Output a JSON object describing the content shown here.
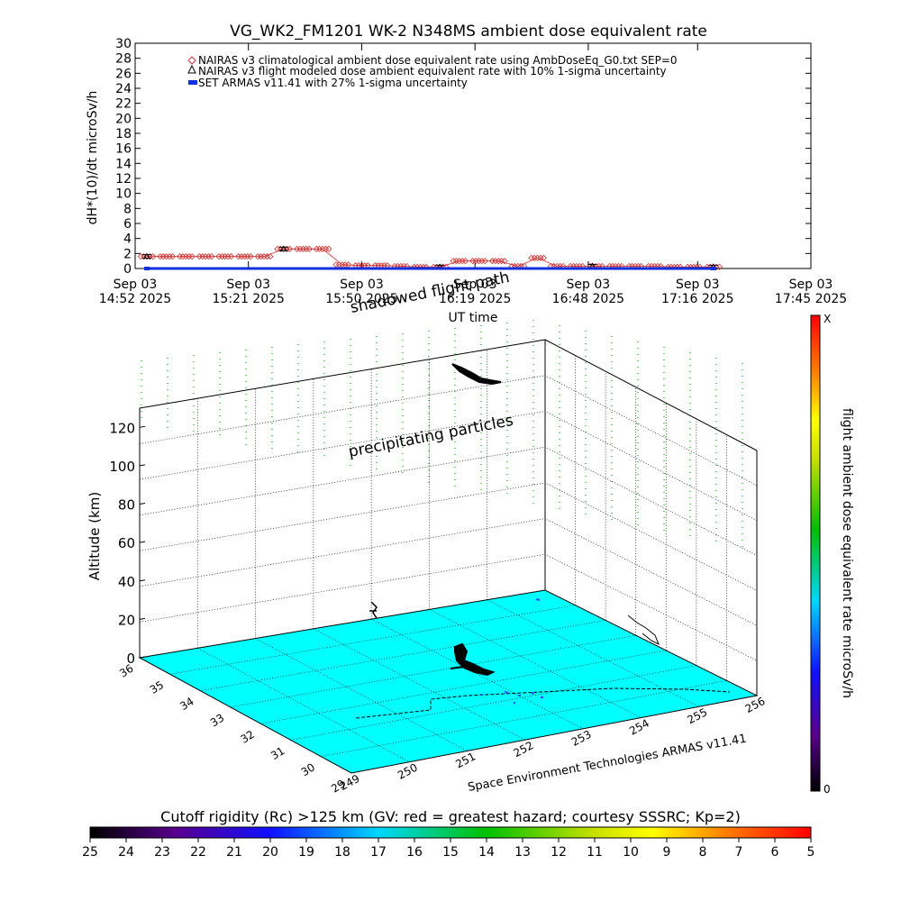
{
  "chart_data": [
    {
      "type": "line",
      "title": "VG_WK2_FM1201    WK-2 N348MS ambient dose equivalent rate",
      "xlabel": "UT time",
      "ylabel": "dH*(10)/dt microSv/h",
      "ylim": [
        0,
        30
      ],
      "yticks": [
        0,
        2,
        4,
        6,
        8,
        10,
        12,
        14,
        16,
        18,
        20,
        22,
        24,
        26,
        28,
        30
      ],
      "xticks": [
        {
          "date": "Sep 03",
          "time": "14:52 2025"
        },
        {
          "date": "Sep 03",
          "time": "15:21 2025"
        },
        {
          "date": "Sep 03",
          "time": "15:50 2025"
        },
        {
          "date": "Sep 03",
          "time": "16:19 2025"
        },
        {
          "date": "Sep 03",
          "time": "16:48 2025"
        },
        {
          "date": "Sep 03",
          "time": "17:16 2025"
        },
        {
          "date": "Sep 03",
          "time": "17:45 2025"
        }
      ],
      "legend_position": "top-left",
      "series": [
        {
          "name": "NAIRAS v3 climatological ambient dose equivalent rate using AmbDoseEq_G0.txt SEP=0",
          "marker": "diamond",
          "color": "#d03030",
          "x": [
            "14:55",
            "15:00",
            "15:05",
            "15:10",
            "15:15",
            "15:20",
            "15:25",
            "15:30",
            "15:35",
            "15:40",
            "15:45",
            "15:50",
            "15:55",
            "16:00",
            "16:05",
            "16:10",
            "16:15",
            "16:20",
            "16:25",
            "16:30",
            "16:35",
            "16:40",
            "16:45",
            "16:50",
            "16:55",
            "17:00",
            "17:05",
            "17:10",
            "17:15",
            "17:20"
          ],
          "values": [
            1.6,
            1.6,
            1.6,
            1.6,
            1.6,
            1.6,
            1.6,
            2.6,
            2.6,
            2.6,
            0.5,
            0.4,
            0.4,
            0.3,
            0.2,
            0.2,
            1.0,
            1.0,
            1.0,
            0.3,
            1.4,
            0.3,
            0.3,
            0.3,
            0.3,
            0.3,
            0.3,
            0.2,
            0.2,
            0.2
          ]
        },
        {
          "name": "NAIRAS v3 flight modeled dose ambient equivalent rate with 10% 1-sigma uncertainty",
          "marker": "triangle",
          "color": "#000000",
          "x": [
            "14:55",
            "15:30",
            "16:10",
            "16:49",
            "17:20"
          ],
          "values": [
            1.6,
            2.6,
            0.2,
            0.3,
            0.2
          ]
        },
        {
          "name": "SET ARMAS v11.41 with 27% 1-sigma uncertainty",
          "marker": "square",
          "color": "#1030e0",
          "x": [
            "14:55",
            "17:20"
          ],
          "values": [
            0,
            0
          ]
        }
      ]
    },
    {
      "type": "3d-trajectory",
      "zlabel": "Altitude (km)",
      "zticks": [
        0,
        20,
        40,
        60,
        80,
        100,
        120
      ],
      "lon_ticks": [
        "249",
        "250",
        "251",
        "252",
        "253",
        "254",
        "255",
        "256"
      ],
      "lat_ticks": [
        "29",
        "30",
        "31",
        "32",
        "33",
        "34",
        "35",
        "36"
      ],
      "annotations": [
        "precipitating particles",
        "shadowed flight path"
      ],
      "credit": "Space Environment Technologies ARMAS v11.41",
      "colorbar": {
        "label": "flight ambient dose equivalent rate microSv/h",
        "max_label": "X",
        "min_label": "0"
      }
    },
    {
      "type": "colorbar",
      "title": "Cutoff rigidity (Rc) >125 km (GV: red = greatest hazard; courtesy SSSRC; Kp=2)",
      "ticks": [
        "25",
        "24",
        "23",
        "22",
        "21",
        "20",
        "19",
        "18",
        "17",
        "16",
        "15",
        "14",
        "13",
        "12",
        "11",
        "10",
        "9",
        "8",
        "7",
        "6",
        "5"
      ]
    }
  ]
}
